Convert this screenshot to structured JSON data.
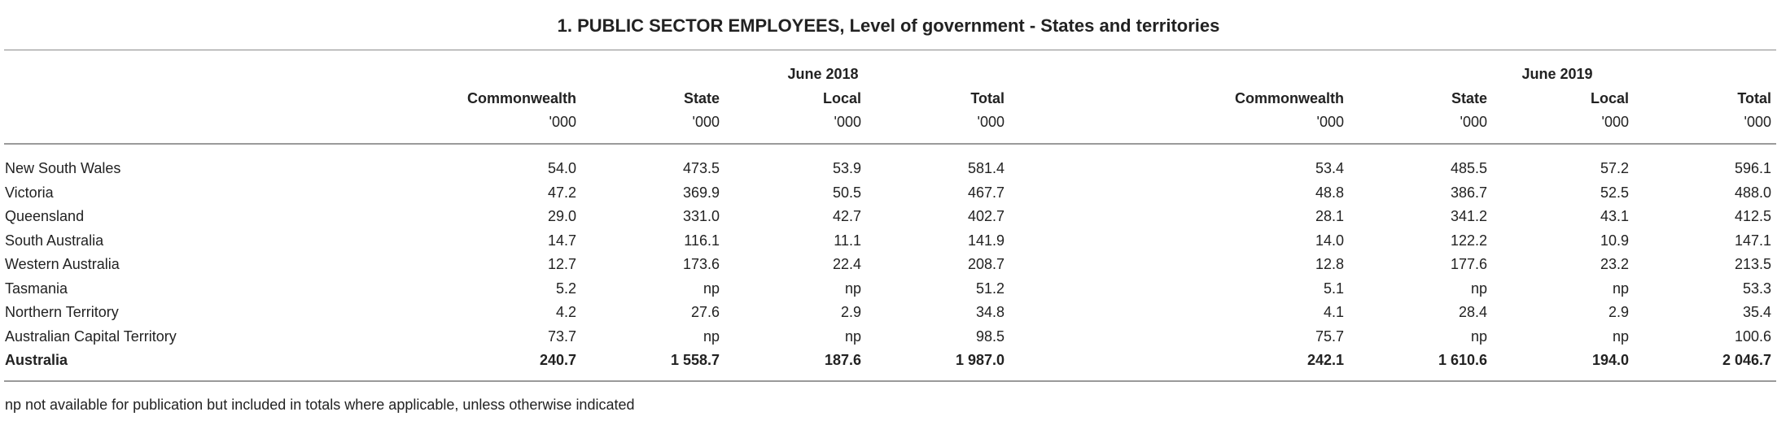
{
  "title": "1. PUBLIC SECTOR EMPLOYEES, Level of government - States and territories",
  "groups": [
    {
      "label": "June 2018",
      "columns": [
        "Commonwealth",
        "State",
        "Local",
        "Total"
      ],
      "units": [
        "'000",
        "'000",
        "'000",
        "'000"
      ]
    },
    {
      "label": "June 2019",
      "columns": [
        "Commonwealth",
        "State",
        "Local",
        "Total"
      ],
      "units": [
        "'000",
        "'000",
        "'000",
        "'000"
      ]
    }
  ],
  "rows": [
    {
      "label": "New South Wales",
      "bold": false,
      "values": [
        "54.0",
        "473.5",
        "53.9",
        "581.4",
        "53.4",
        "485.5",
        "57.2",
        "596.1"
      ]
    },
    {
      "label": "Victoria",
      "bold": false,
      "values": [
        "47.2",
        "369.9",
        "50.5",
        "467.7",
        "48.8",
        "386.7",
        "52.5",
        "488.0"
      ]
    },
    {
      "label": "Queensland",
      "bold": false,
      "values": [
        "29.0",
        "331.0",
        "42.7",
        "402.7",
        "28.1",
        "341.2",
        "43.1",
        "412.5"
      ]
    },
    {
      "label": "South Australia",
      "bold": false,
      "values": [
        "14.7",
        "116.1",
        "11.1",
        "141.9",
        "14.0",
        "122.2",
        "10.9",
        "147.1"
      ]
    },
    {
      "label": "Western Australia",
      "bold": false,
      "values": [
        "12.7",
        "173.6",
        "22.4",
        "208.7",
        "12.8",
        "177.6",
        "23.2",
        "213.5"
      ]
    },
    {
      "label": "Tasmania",
      "bold": false,
      "values": [
        "5.2",
        "np",
        "np",
        "51.2",
        "5.1",
        "np",
        "np",
        "53.3"
      ]
    },
    {
      "label": "Northern Territory",
      "bold": false,
      "values": [
        "4.2",
        "27.6",
        "2.9",
        "34.8",
        "4.1",
        "28.4",
        "2.9",
        "35.4"
      ]
    },
    {
      "label": "Australian Capital Territory",
      "bold": false,
      "values": [
        "73.7",
        "np",
        "np",
        "98.5",
        "75.7",
        "np",
        "np",
        "100.6"
      ]
    },
    {
      "label": "Australia",
      "bold": true,
      "values": [
        "240.7",
        "1 558.7",
        "187.6",
        "1 987.0",
        "242.1",
        "1 610.6",
        "194.0",
        "2 046.7"
      ]
    }
  ],
  "footnote": "np not available for publication but included in totals where applicable, unless otherwise indicated"
}
